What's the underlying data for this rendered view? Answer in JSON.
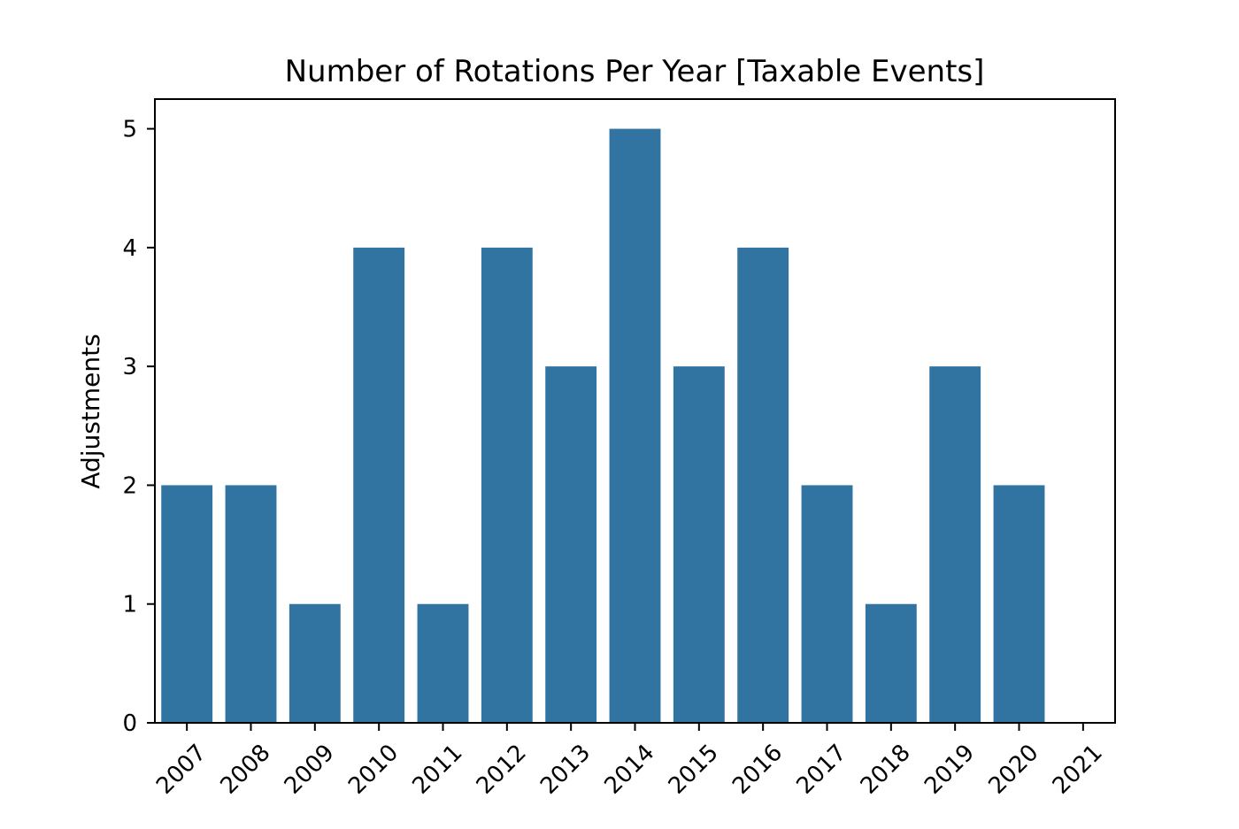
{
  "chart_data": {
    "type": "bar",
    "title": "Number of Rotations Per Year [Taxable Events]",
    "xlabel": "",
    "ylabel": "Adjustments",
    "categories": [
      "2007",
      "2008",
      "2009",
      "2010",
      "2011",
      "2012",
      "2013",
      "2014",
      "2015",
      "2016",
      "2017",
      "2018",
      "2019",
      "2020",
      "2021"
    ],
    "values": [
      2,
      2,
      1,
      4,
      1,
      4,
      3,
      5,
      3,
      4,
      2,
      1,
      3,
      2,
      0
    ],
    "ylim": [
      0,
      5.25
    ],
    "yticks": [
      "0",
      "1",
      "2",
      "3",
      "4",
      "5"
    ],
    "grid": false,
    "legend": "none",
    "bar_color": "#3274a1",
    "axis_color": "#000000"
  }
}
